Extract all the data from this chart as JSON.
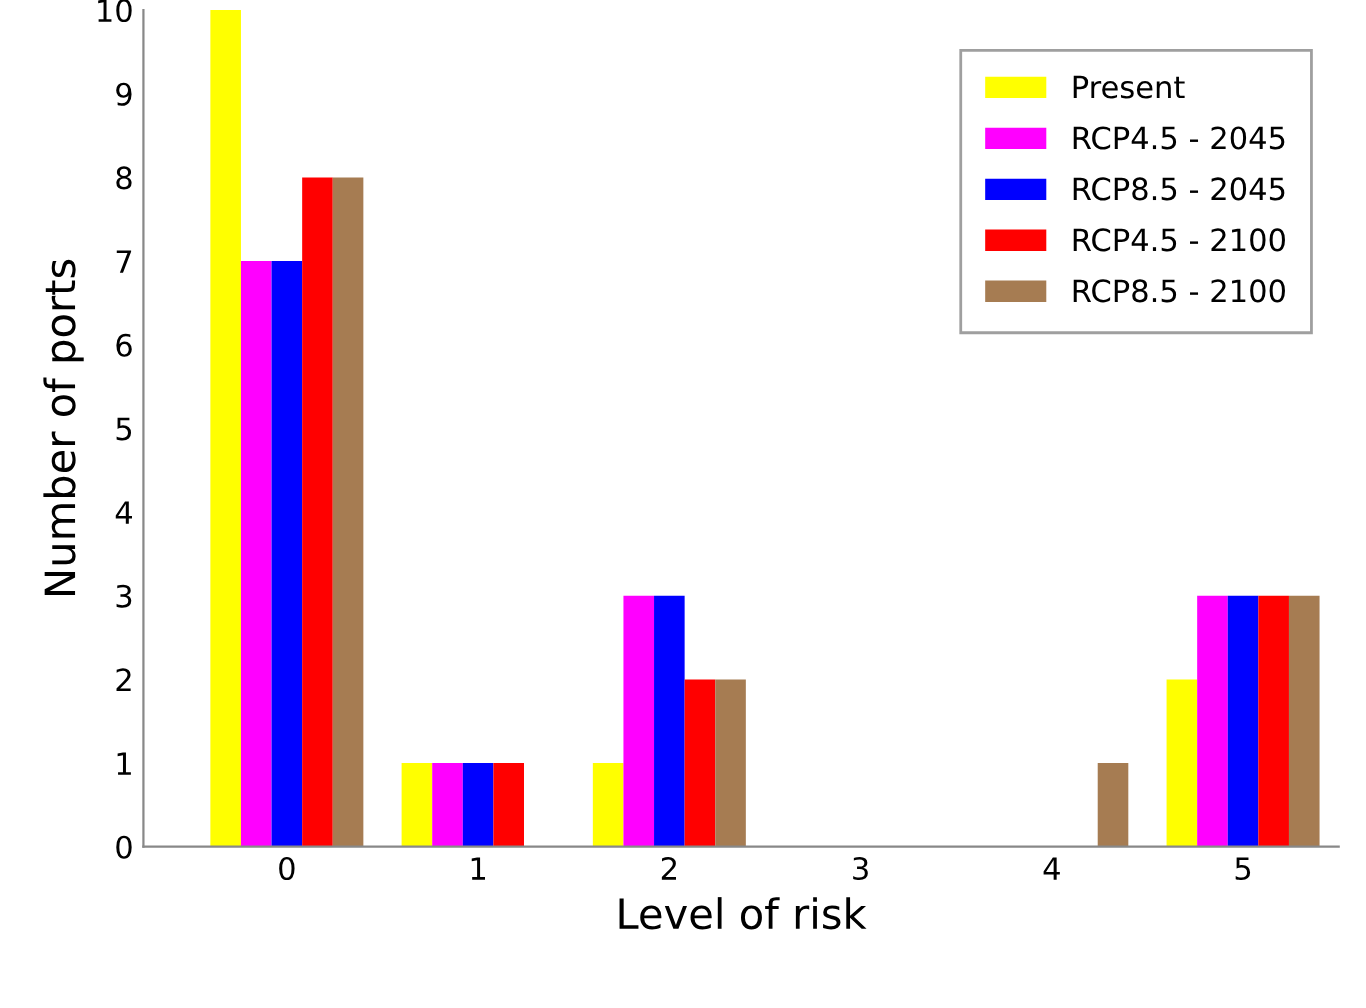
{
  "chart_data": {
    "type": "bar",
    "xlabel": "Level of risk",
    "ylabel": "Number of ports",
    "categories": [
      "0",
      "1",
      "2",
      "3",
      "4",
      "5"
    ],
    "series": [
      {
        "name": "Present",
        "color": "#ffff00",
        "values": [
          10,
          1,
          1,
          0,
          0,
          2
        ]
      },
      {
        "name": "RCP4.5 - 2045",
        "color": "#ff00ff",
        "values": [
          7,
          1,
          3,
          0,
          0,
          3
        ]
      },
      {
        "name": "RCP8.5 - 2045",
        "color": "#0000ff",
        "values": [
          7,
          1,
          3,
          0,
          0,
          3
        ]
      },
      {
        "name": "RCP4.5 - 2100",
        "color": "#ff0000",
        "values": [
          8,
          1,
          2,
          0,
          0,
          3
        ]
      },
      {
        "name": "RCP8.5 - 2100",
        "color": "#a67c52",
        "values": [
          8,
          0,
          2,
          0,
          1,
          3
        ]
      }
    ],
    "ylim": [
      0,
      10
    ],
    "yticks": [
      0,
      1,
      2,
      3,
      4,
      5,
      6,
      7,
      8,
      9,
      10
    ],
    "grid": false,
    "legend": "top right"
  }
}
